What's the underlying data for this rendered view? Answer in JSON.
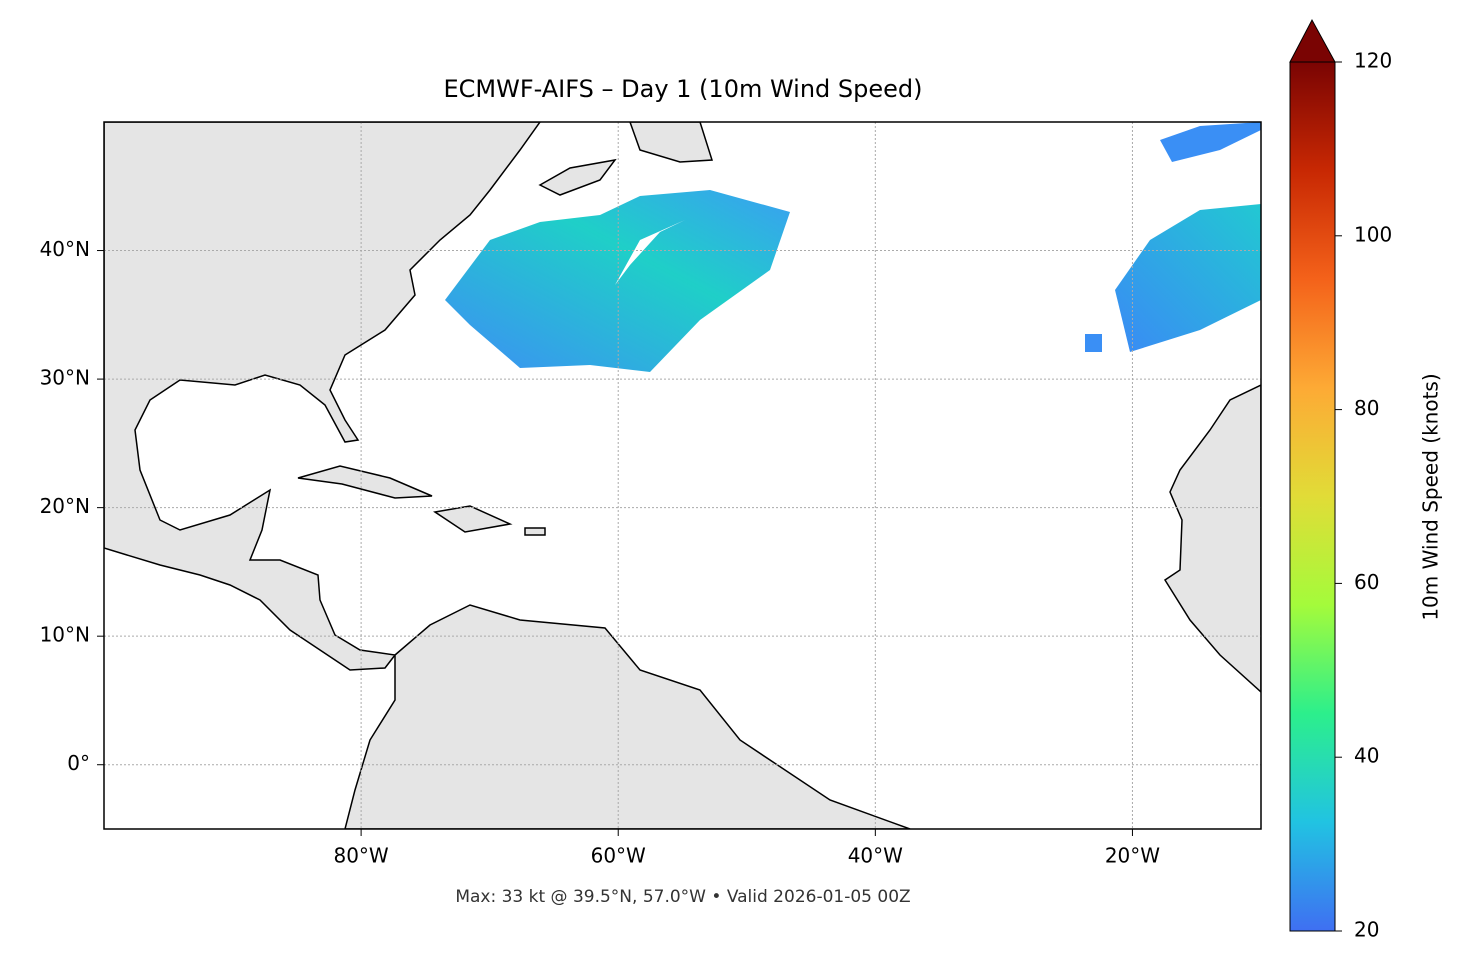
{
  "map": {
    "title": "ECMWF-AIFS – Day 1 (10m Wind Speed)",
    "xlim": [
      -100,
      -10
    ],
    "ylim": [
      -5,
      50
    ],
    "xticks": [
      {
        "value": -80,
        "label": "80°W"
      },
      {
        "value": -60,
        "label": "60°W"
      },
      {
        "value": -40,
        "label": "40°W"
      },
      {
        "value": -20,
        "label": "20°W"
      }
    ],
    "yticks": [
      {
        "value": 0,
        "label": "0°"
      },
      {
        "value": 10,
        "label": "10°N"
      },
      {
        "value": 20,
        "label": "20°N"
      },
      {
        "value": 30,
        "label": "30°N"
      },
      {
        "value": 40,
        "label": "40°N"
      }
    ],
    "annotation": "Max: 33 kt @ 39.5°N, 57.0°W • Valid 2026-01-05 00Z"
  },
  "colorbar": {
    "label": "10m Wind Speed (knots)",
    "lim": [
      20,
      120
    ],
    "ticks": [
      20,
      40,
      60,
      80,
      100,
      120
    ],
    "colors": [
      "#3f6ff2",
      "#21c3e2",
      "#2cef8c",
      "#a4fb3b",
      "#e1dc37",
      "#fdaa35",
      "#f4621a",
      "#c82803",
      "#7a0403"
    ]
  }
}
